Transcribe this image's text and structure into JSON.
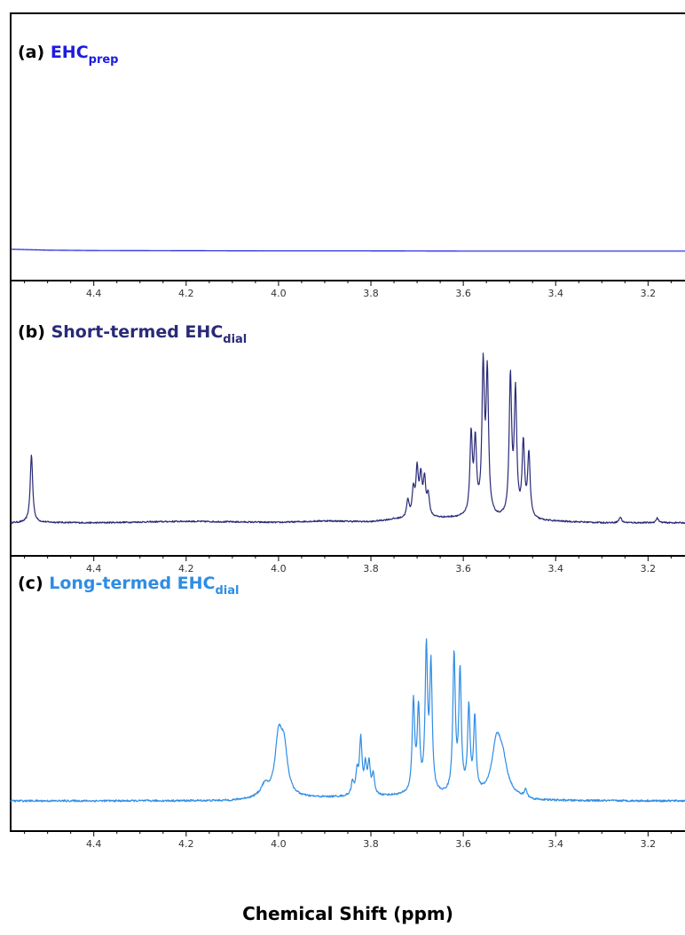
{
  "chart_data": {
    "type": "line",
    "xlabel": "Chemical Shift (ppm)",
    "x_reversed": true,
    "xlim": [
      4.58,
      3.12
    ],
    "x_ticks": [
      "4.4",
      "4.2",
      "4.0",
      "3.8",
      "3.6",
      "3.4",
      "3.2"
    ],
    "panels": [
      {
        "label_prefix": "(a) ",
        "name_main": "EHC",
        "name_sub": "prep",
        "color": "#1c1ce0",
        "ylim": [
          0,
          1
        ],
        "baseline": 0.08,
        "noise": 0.0,
        "x": [
          4.58,
          4.5,
          4.4,
          4.2,
          4.0,
          3.8,
          3.6,
          3.4,
          3.2,
          3.12
        ],
        "y": [
          0.09,
          0.085,
          0.083,
          0.082,
          0.081,
          0.081,
          0.08,
          0.08,
          0.08,
          0.08
        ],
        "peaks": []
      },
      {
        "label_prefix": "(b) ",
        "name_main": "Short-termed EHC",
        "name_sub": "dial",
        "color": "#2a2a78",
        "ylim": [
          0,
          1
        ],
        "baseline": 0.1,
        "noise": 0.004,
        "x": [
          4.58,
          4.5,
          4.4,
          4.2,
          4.0,
          3.9,
          3.8,
          3.75,
          3.62,
          3.5,
          3.45,
          3.3,
          3.2,
          3.12
        ],
        "y": [
          0.1,
          0.102,
          0.1,
          0.108,
          0.102,
          0.11,
          0.105,
          0.118,
          0.125,
          0.118,
          0.11,
          0.1,
          0.1,
          0.1
        ],
        "peaks": [
          {
            "x": 4.535,
            "h": 0.36
          },
          {
            "x": 3.72,
            "h": 0.09
          },
          {
            "x": 3.708,
            "h": 0.14
          },
          {
            "x": 3.7,
            "h": 0.24
          },
          {
            "x": 3.692,
            "h": 0.2
          },
          {
            "x": 3.684,
            "h": 0.19
          },
          {
            "x": 3.676,
            "h": 0.11
          },
          {
            "x": 3.583,
            "h": 0.42
          },
          {
            "x": 3.574,
            "h": 0.38
          },
          {
            "x": 3.557,
            "h": 0.77
          },
          {
            "x": 3.548,
            "h": 0.74
          },
          {
            "x": 3.498,
            "h": 0.73
          },
          {
            "x": 3.487,
            "h": 0.65
          },
          {
            "x": 3.47,
            "h": 0.39
          },
          {
            "x": 3.458,
            "h": 0.34
          },
          {
            "x": 3.26,
            "h": 0.03
          },
          {
            "x": 3.18,
            "h": 0.025
          }
        ]
      },
      {
        "label_prefix": "(c) ",
        "name_main": "Long-termed EHC",
        "name_sub": "dial",
        "color": "#2f8de4",
        "ylim": [
          0,
          1
        ],
        "baseline": 0.1,
        "noise": 0.006,
        "x": [
          4.58,
          4.1,
          4.05,
          3.72,
          3.5,
          3.45,
          3.12
        ],
        "y": [
          0.1,
          0.1,
          0.11,
          0.13,
          0.12,
          0.1,
          0.1
        ],
        "peaks": [
          {
            "x": 4.0,
            "h": 0.35,
            "w": 0.009
          },
          {
            "x": 3.988,
            "h": 0.28,
            "w": 0.009
          },
          {
            "x": 4.03,
            "h": 0.07,
            "w": 0.01
          },
          {
            "x": 3.84,
            "h": 0.08
          },
          {
            "x": 3.83,
            "h": 0.14
          },
          {
            "x": 3.822,
            "h": 0.34
          },
          {
            "x": 3.812,
            "h": 0.17
          },
          {
            "x": 3.804,
            "h": 0.19
          },
          {
            "x": 3.795,
            "h": 0.12
          },
          {
            "x": 3.708,
            "h": 0.57
          },
          {
            "x": 3.697,
            "h": 0.51
          },
          {
            "x": 3.68,
            "h": 0.88
          },
          {
            "x": 3.67,
            "h": 0.78
          },
          {
            "x": 3.62,
            "h": 0.86
          },
          {
            "x": 3.607,
            "h": 0.75
          },
          {
            "x": 3.588,
            "h": 0.52
          },
          {
            "x": 3.575,
            "h": 0.46
          },
          {
            "x": 3.528,
            "h": 0.31,
            "w": 0.012
          },
          {
            "x": 3.515,
            "h": 0.18,
            "w": 0.012
          },
          {
            "x": 3.465,
            "h": 0.05
          }
        ]
      }
    ]
  }
}
